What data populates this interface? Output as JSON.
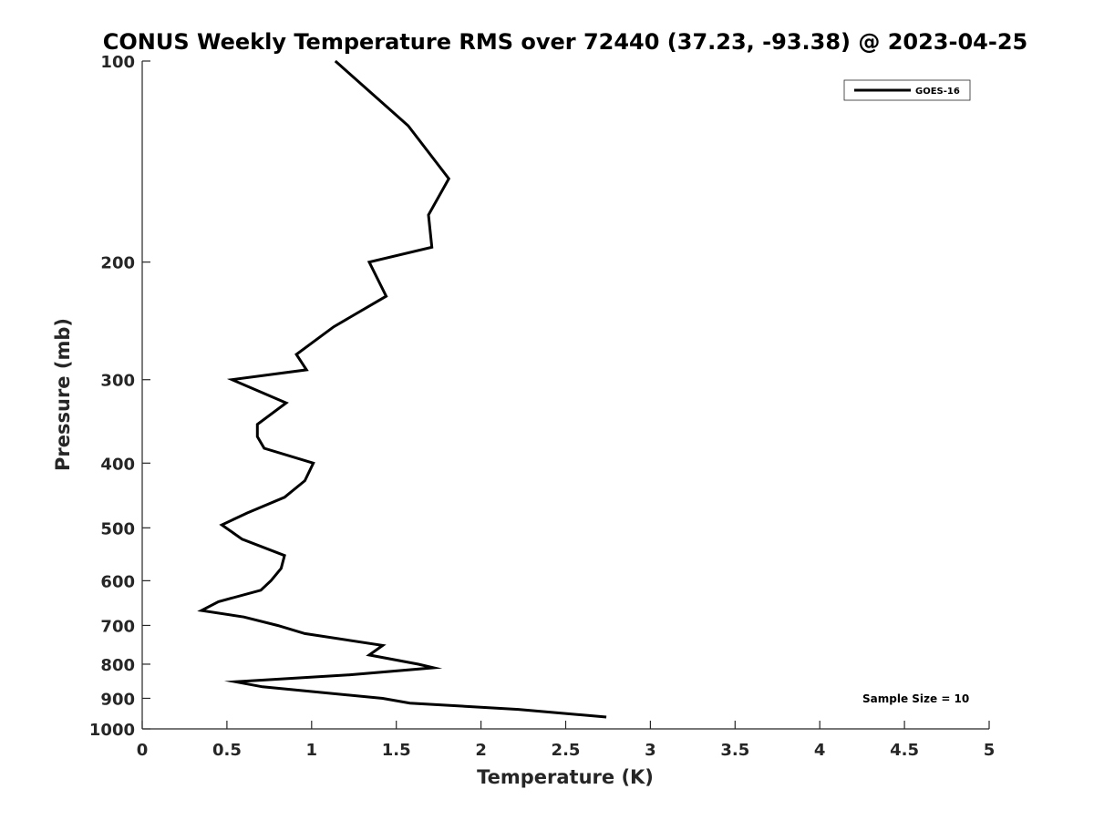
{
  "chart_data": {
    "type": "line",
    "title": "CONUS Weekly Temperature RMS over 72440 (37.23, -93.38) @ 2023-04-25",
    "xlabel": "Temperature (K)",
    "ylabel": "Pressure (mb)",
    "xlim": [
      0,
      5
    ],
    "ylim": [
      1000,
      100
    ],
    "y_scale": "log",
    "y_reversed": true,
    "x_ticks": [
      "0",
      "0.5",
      "1",
      "1.5",
      "2",
      "2.5",
      "3",
      "3.5",
      "4",
      "4.5",
      "5"
    ],
    "y_ticks": [
      "100",
      "200",
      "300",
      "400",
      "500",
      "600",
      "700",
      "800",
      "900",
      "1000"
    ],
    "grid": false,
    "legend": {
      "position": "top-right",
      "entries": [
        "GOES-16"
      ]
    },
    "annotation": "Sample Size = 10",
    "series": [
      {
        "name": "GOES-16",
        "color": "#000000",
        "x": [
          1.14,
          1.57,
          1.81,
          1.69,
          1.71,
          1.34,
          1.44,
          1.13,
          0.91,
          0.97,
          0.53,
          0.85,
          0.68,
          0.68,
          0.72,
          1.01,
          0.96,
          0.84,
          0.62,
          0.47,
          0.59,
          0.84,
          0.82,
          0.76,
          0.7,
          0.45,
          0.35,
          0.6,
          0.8,
          0.96,
          1.42,
          1.34,
          1.63,
          1.72,
          1.22,
          0.55,
          0.71,
          1.42,
          1.58,
          2.22,
          2.74
        ],
        "y": [
          100,
          125,
          150,
          170,
          190,
          200,
          225,
          250,
          275,
          290,
          300,
          325,
          350,
          365,
          380,
          400,
          425,
          450,
          475,
          495,
          520,
          550,
          575,
          600,
          620,
          645,
          665,
          680,
          700,
          720,
          750,
          775,
          800,
          810,
          830,
          850,
          865,
          900,
          915,
          935,
          960
        ]
      }
    ]
  }
}
